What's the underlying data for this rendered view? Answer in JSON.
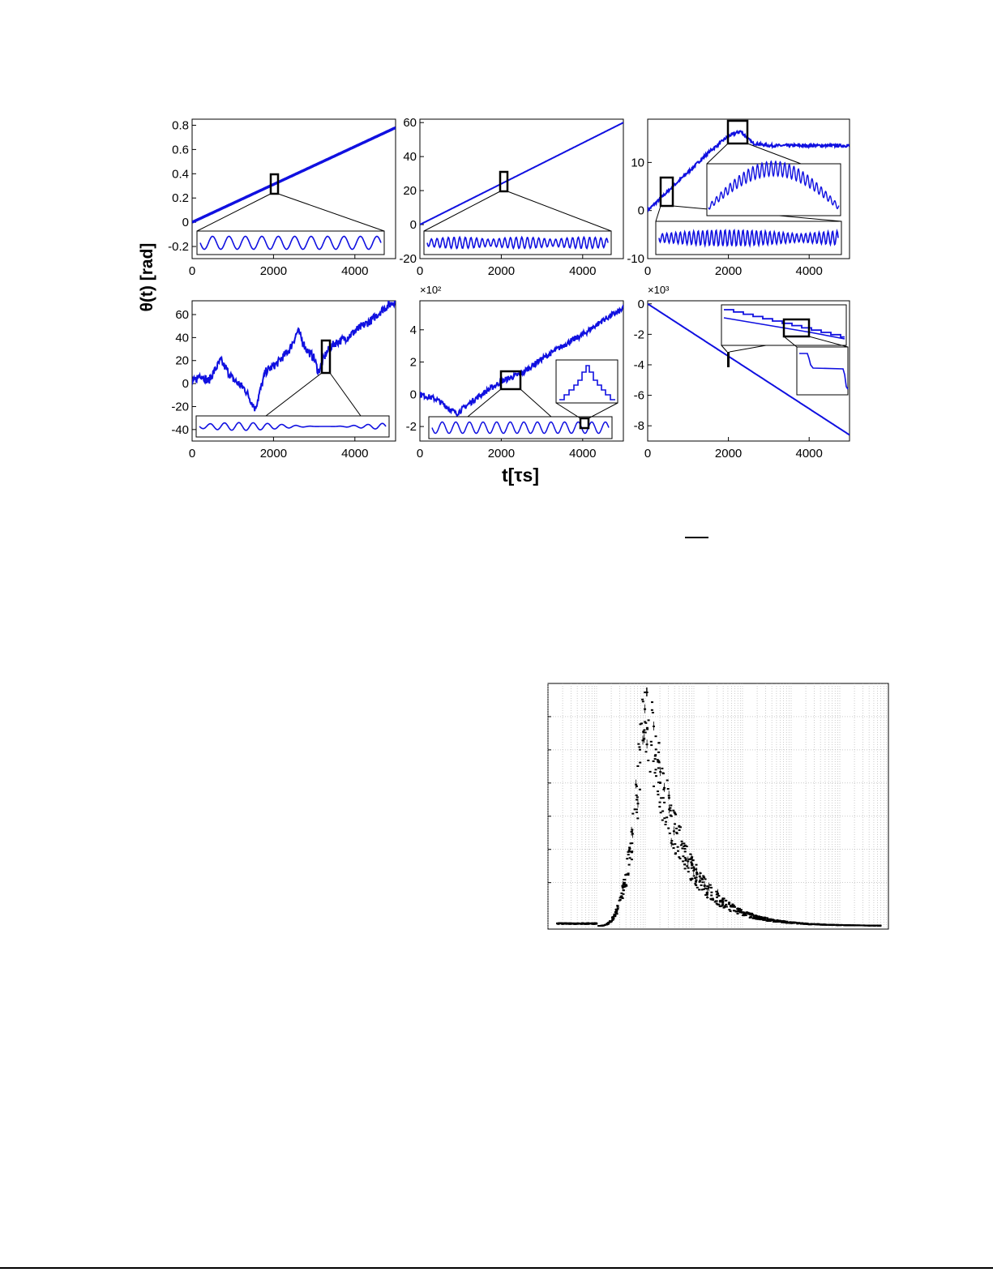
{
  "figure": {
    "ylabel": "θ(t) [rad]",
    "xlabel": "t[τs]",
    "color_series": "#1010e0",
    "panels": [
      {
        "id": "a",
        "yticks": [
          "0.8",
          "0.6",
          "0.4",
          "0.2",
          "0",
          "-0.2"
        ],
        "xticks": [
          "0",
          "2000",
          "4000"
        ],
        "exponent": ""
      },
      {
        "id": "b",
        "yticks": [
          "60",
          "40",
          "20",
          "0",
          "-20"
        ],
        "xticks": [
          "0",
          "2000",
          "4000"
        ],
        "exponent": ""
      },
      {
        "id": "c",
        "yticks": [
          "10",
          "0",
          "-10"
        ],
        "xticks": [
          "0",
          "2000",
          "4000"
        ],
        "exponent": ""
      },
      {
        "id": "d",
        "yticks": [
          "60",
          "40",
          "20",
          "0",
          "-20",
          "-40"
        ],
        "xticks": [
          "0",
          "2000",
          "4000"
        ],
        "exponent": ""
      },
      {
        "id": "e",
        "yticks": [
          "4",
          "2",
          "0",
          "-2"
        ],
        "xticks": [
          "0",
          "2000",
          "4000"
        ],
        "exponent": "×10²"
      },
      {
        "id": "f",
        "yticks": [
          "0",
          "-2",
          "-4",
          "-6",
          "-8"
        ],
        "xticks": [
          "0",
          "2000",
          "4000"
        ],
        "exponent": "×10³"
      }
    ]
  },
  "chart_data": [
    {
      "type": "line",
      "panel": "a",
      "x": [
        0,
        5000
      ],
      "y": [
        0,
        0.78
      ],
      "xlim": [
        0,
        5000
      ],
      "ylim": [
        -0.3,
        0.85
      ]
    },
    {
      "type": "line",
      "panel": "b",
      "x": [
        0,
        5000
      ],
      "y": [
        0,
        60
      ],
      "xlim": [
        0,
        5000
      ],
      "ylim": [
        -20,
        62
      ]
    },
    {
      "type": "line",
      "panel": "c",
      "x": [
        0,
        500,
        1000,
        1500,
        2000,
        2300,
        2600,
        3000,
        4000,
        5000
      ],
      "y": [
        0,
        4,
        8,
        12,
        15.5,
        16.5,
        14,
        13.5,
        13.5,
        13.5
      ],
      "xlim": [
        0,
        5000
      ],
      "ylim": [
        -10,
        19
      ]
    },
    {
      "type": "line",
      "panel": "d",
      "x": [
        0,
        200,
        400,
        700,
        1000,
        1300,
        1550,
        1800,
        2100,
        2400,
        2600,
        2800,
        3000,
        3100,
        3300,
        3500,
        3800,
        4100,
        4400,
        4700,
        5000
      ],
      "y": [
        0,
        8,
        2,
        20,
        4,
        -5,
        -22,
        10,
        18,
        30,
        46,
        30,
        22,
        10,
        27,
        35,
        40,
        48,
        55,
        65,
        72
      ],
      "xlim": [
        0,
        5000
      ],
      "ylim": [
        -50,
        72
      ]
    },
    {
      "type": "line",
      "panel": "e",
      "x": [
        0,
        400,
        900,
        1400,
        2000,
        2500,
        3000,
        3500,
        4000,
        4500,
        5000
      ],
      "y": [
        0,
        -0.3,
        -1.2,
        -0.2,
        0.8,
        1.3,
        2.2,
        3.0,
        3.7,
        4.6,
        5.3
      ],
      "xlim": [
        0,
        5000
      ],
      "ylim": [
        -2.9,
        5.8
      ]
    },
    {
      "type": "line",
      "panel": "f",
      "x": [
        0,
        5000
      ],
      "y": [
        0,
        -8.6
      ],
      "xlim": [
        0,
        5000
      ],
      "ylim": [
        -9,
        0.2
      ]
    },
    {
      "type": "scatter",
      "panel": "histogram",
      "grid": true
    }
  ]
}
